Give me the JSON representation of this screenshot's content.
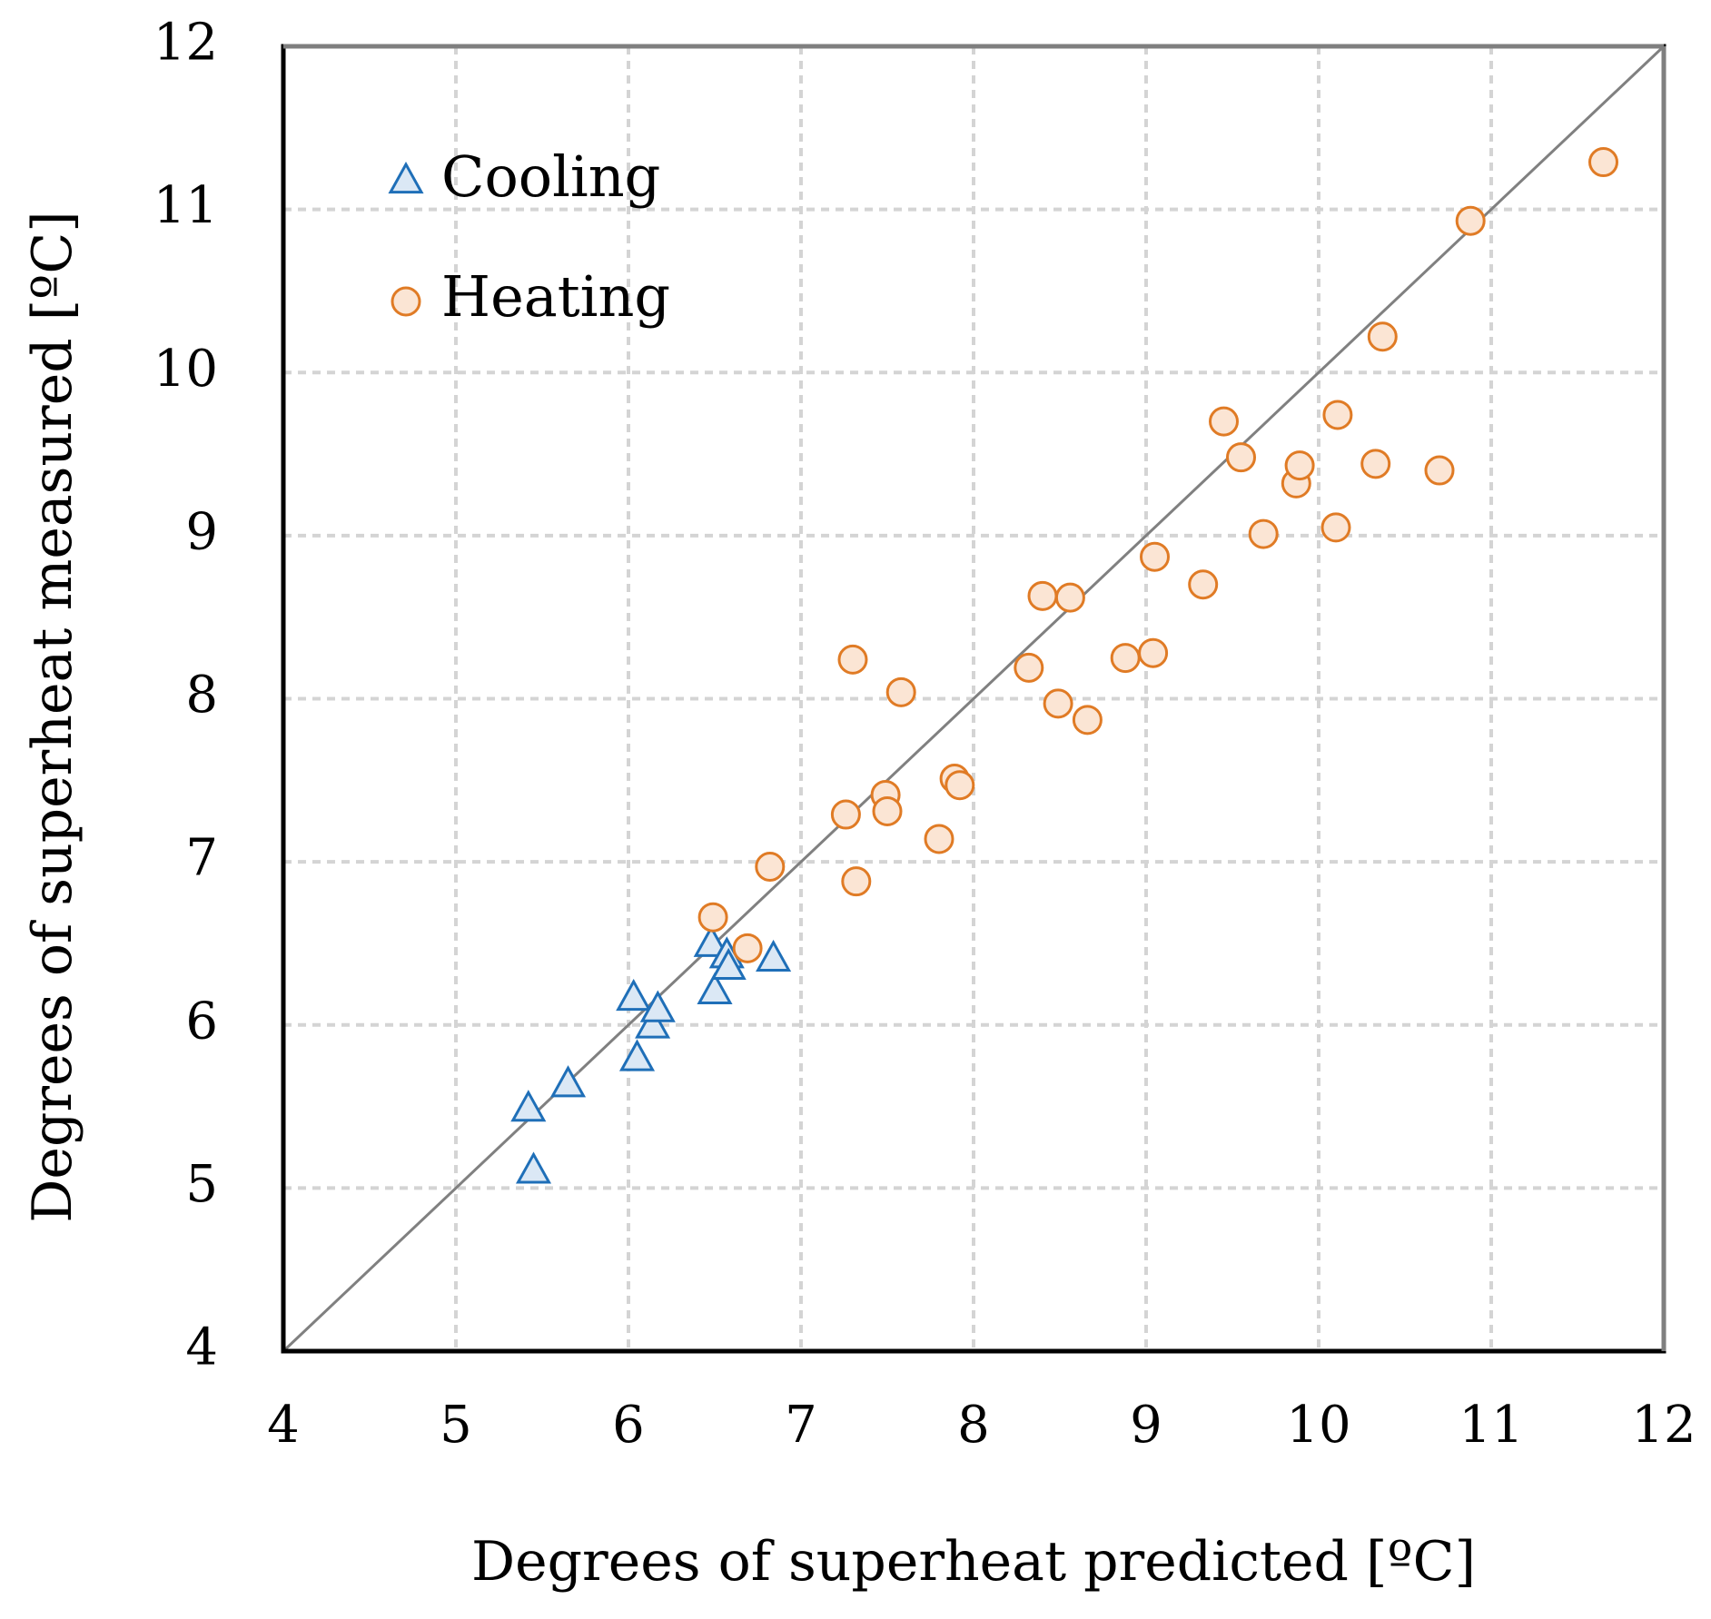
{
  "chart_data": {
    "type": "scatter",
    "title": "",
    "xlabel": "Degrees of superheat predicted [ºC]",
    "ylabel": "Degrees of superheat measured [ºC]",
    "xlim": [
      4,
      12
    ],
    "ylim": [
      4,
      12
    ],
    "xticks": [
      "4",
      "5",
      "6",
      "7",
      "8",
      "9",
      "10",
      "11",
      "12"
    ],
    "yticks": [
      "4",
      "5",
      "6",
      "7",
      "8",
      "9",
      "10",
      "11",
      "12"
    ],
    "grid": true,
    "legend_position": "top-left",
    "reference_line": {
      "label": "y = x",
      "from": [
        4,
        4
      ],
      "to": [
        12,
        12
      ],
      "color": "#808080"
    },
    "series": [
      {
        "name": "Cooling",
        "marker": "triangle",
        "stroke": "#1f6fb8",
        "fill": "#dbe8f5",
        "points": [
          [
            5.42,
            5.48
          ],
          [
            5.45,
            5.1
          ],
          [
            5.65,
            5.63
          ],
          [
            6.03,
            6.16
          ],
          [
            6.05,
            5.79
          ],
          [
            6.14,
            5.99
          ],
          [
            6.17,
            6.09
          ],
          [
            6.48,
            6.49
          ],
          [
            6.5,
            6.2
          ],
          [
            6.57,
            6.42
          ],
          [
            6.58,
            6.35
          ],
          [
            6.84,
            6.4
          ]
        ]
      },
      {
        "name": "Heating",
        "marker": "circle",
        "stroke": "#e07b25",
        "fill": "#fbe5d4",
        "points": [
          [
            6.49,
            6.66
          ],
          [
            6.69,
            6.47
          ],
          [
            6.82,
            6.97
          ],
          [
            7.26,
            7.29
          ],
          [
            7.3,
            8.24
          ],
          [
            7.32,
            6.88
          ],
          [
            7.49,
            7.41
          ],
          [
            7.5,
            7.31
          ],
          [
            7.58,
            8.04
          ],
          [
            7.8,
            7.14
          ],
          [
            7.89,
            7.51
          ],
          [
            7.92,
            7.47
          ],
          [
            8.32,
            8.19
          ],
          [
            8.4,
            8.63
          ],
          [
            8.49,
            7.97
          ],
          [
            8.56,
            8.62
          ],
          [
            8.66,
            7.87
          ],
          [
            8.88,
            8.25
          ],
          [
            9.04,
            8.28
          ],
          [
            9.05,
            8.87
          ],
          [
            9.33,
            8.7
          ],
          [
            9.45,
            9.7
          ],
          [
            9.55,
            9.48
          ],
          [
            9.68,
            9.01
          ],
          [
            9.87,
            9.32
          ],
          [
            9.89,
            9.43
          ],
          [
            10.1,
            9.05
          ],
          [
            10.11,
            9.74
          ],
          [
            10.33,
            9.44
          ],
          [
            10.37,
            10.22
          ],
          [
            10.7,
            9.4
          ],
          [
            10.88,
            10.93
          ],
          [
            11.65,
            11.29
          ]
        ]
      }
    ]
  }
}
